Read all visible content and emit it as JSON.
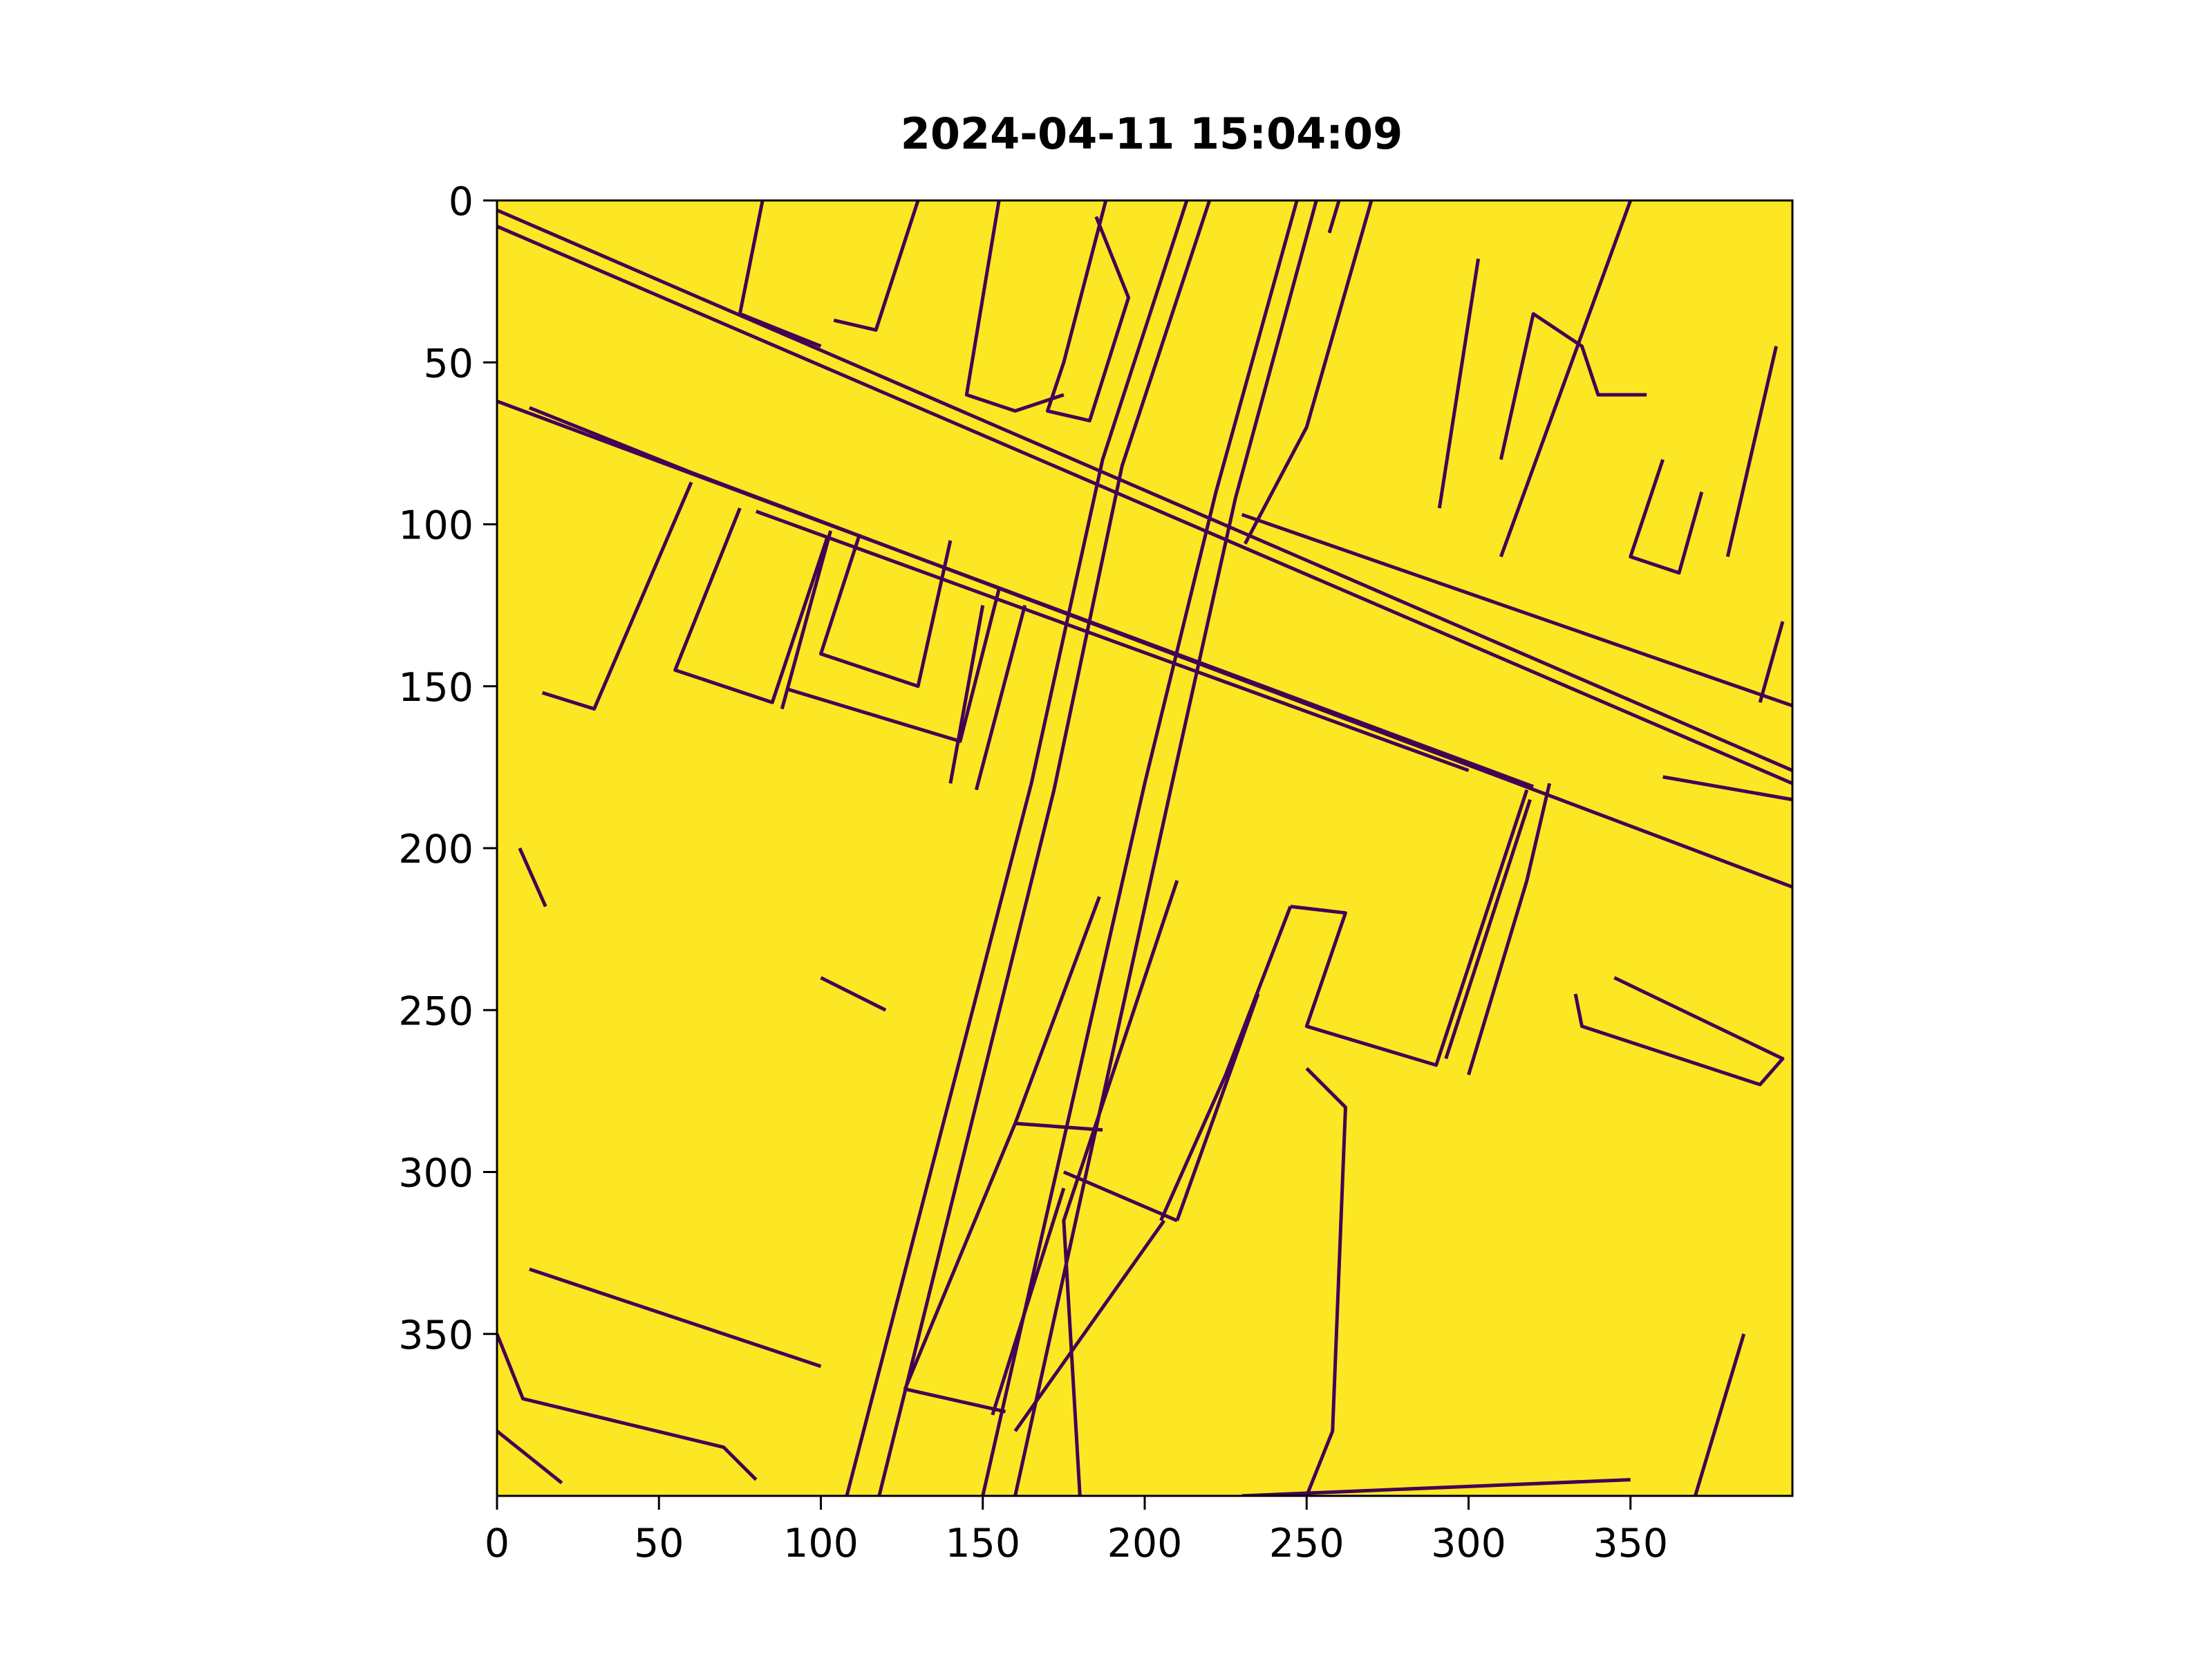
{
  "chart_data": {
    "type": "heatmap",
    "title": "2024-04-11 15:04:09",
    "xlabel": "",
    "ylabel": "",
    "xlim": [
      0,
      400
    ],
    "ylim": [
      400,
      0
    ],
    "x_ticks": [
      "0",
      "50",
      "100",
      "150",
      "200",
      "250",
      "300",
      "350"
    ],
    "y_ticks": [
      "0",
      "50",
      "100",
      "150",
      "200",
      "250",
      "300",
      "350"
    ],
    "x_tick_values": [
      0,
      50,
      100,
      150,
      200,
      250,
      300,
      350
    ],
    "y_tick_values": [
      0,
      50,
      100,
      150,
      200,
      250,
      300,
      350
    ],
    "colormap": "viridis",
    "colors": {
      "high": "#fde725",
      "low": "#440154"
    },
    "grid": false,
    "legend": "none",
    "description_values": "binary edge mask image (400x400), mostly high (1) with thin low (0) edge lines of roads and buildings",
    "low_value_strokes": [
      [
        [
          0,
          3
        ],
        [
          400,
          176
        ]
      ],
      [
        [
          0,
          8
        ],
        [
          400,
          180
        ]
      ],
      [
        [
          0,
          62
        ],
        [
          320,
          181
        ]
      ],
      [
        [
          10,
          64
        ],
        [
          60,
          84
        ]
      ],
      [
        [
          60,
          84
        ],
        [
          400,
          212
        ]
      ],
      [
        [
          80,
          96
        ],
        [
          300,
          176
        ]
      ],
      [
        [
          230,
          97
        ],
        [
          400,
          156
        ]
      ],
      [
        [
          350,
          0
        ],
        [
          310,
          110
        ]
      ],
      [
        [
          213,
          0
        ],
        [
          187,
          80
        ],
        [
          165,
          180
        ],
        [
          108,
          400
        ]
      ],
      [
        [
          220,
          0
        ],
        [
          193,
          82
        ],
        [
          172,
          182
        ],
        [
          118,
          400
        ]
      ],
      [
        [
          247,
          0
        ],
        [
          222,
          90
        ],
        [
          200,
          180
        ],
        [
          150,
          400
        ]
      ],
      [
        [
          253,
          0
        ],
        [
          228,
          92
        ],
        [
          208,
          182
        ],
        [
          160,
          400
        ]
      ],
      [
        [
          270,
          0
        ],
        [
          250,
          70
        ],
        [
          231,
          106
        ]
      ],
      [
        [
          303,
          18
        ],
        [
          291,
          95
        ]
      ],
      [
        [
          60,
          87
        ],
        [
          30,
          157
        ],
        [
          14,
          152
        ]
      ],
      [
        [
          102,
          104
        ],
        [
          85,
          155
        ],
        [
          55,
          145
        ],
        [
          75,
          95
        ]
      ],
      [
        [
          103,
          102
        ],
        [
          88,
          157
        ]
      ],
      [
        [
          140,
          105
        ],
        [
          130,
          150
        ],
        [
          100,
          140
        ],
        [
          112,
          103
        ]
      ],
      [
        [
          155,
          120
        ],
        [
          143,
          167
        ],
        [
          90,
          151
        ]
      ],
      [
        [
          163,
          125
        ],
        [
          148,
          182
        ]
      ],
      [
        [
          318,
          182
        ],
        [
          290,
          267
        ],
        [
          250,
          255
        ],
        [
          262,
          220
        ],
        [
          245,
          218
        ]
      ],
      [
        [
          319,
          185
        ],
        [
          293,
          265
        ]
      ],
      [
        [
          245,
          218
        ],
        [
          225,
          270
        ],
        [
          205,
          315
        ]
      ],
      [
        [
          235,
          245
        ],
        [
          210,
          315
        ]
      ],
      [
        [
          210,
          315
        ],
        [
          175,
          300
        ]
      ],
      [
        [
          175,
          305
        ],
        [
          153,
          375
        ]
      ],
      [
        [
          206,
          315
        ],
        [
          160,
          380
        ]
      ],
      [
        [
          157,
          374
        ],
        [
          126,
          367
        ],
        [
          160,
          285
        ],
        [
          187,
          287
        ]
      ],
      [
        [
          186,
          215
        ],
        [
          160,
          285
        ]
      ],
      [
        [
          210,
          210
        ],
        [
          175,
          315
        ],
        [
          180,
          400
        ]
      ],
      [
        [
          250,
          268
        ],
        [
          262,
          280
        ],
        [
          258,
          380
        ],
        [
          250,
          400
        ]
      ],
      [
        [
          333,
          245
        ],
        [
          335,
          255
        ],
        [
          390,
          273
        ],
        [
          397,
          265
        ],
        [
          345,
          240
        ]
      ],
      [
        [
          360,
          178
        ],
        [
          400,
          185
        ]
      ],
      [
        [
          260,
          0
        ],
        [
          257,
          10
        ]
      ],
      [
        [
          325,
          180
        ],
        [
          318,
          210
        ],
        [
          300,
          270
        ]
      ],
      [
        [
          7,
          200
        ],
        [
          15,
          218
        ]
      ],
      [
        [
          0,
          350
        ],
        [
          8,
          370
        ],
        [
          70,
          385
        ],
        [
          80,
          395
        ]
      ],
      [
        [
          10,
          330
        ],
        [
          100,
          360
        ]
      ],
      [
        [
          100,
          240
        ],
        [
          120,
          250
        ]
      ],
      [
        [
          150,
          125
        ],
        [
          140,
          180
        ]
      ],
      [
        [
          0,
          380
        ],
        [
          20,
          396
        ]
      ],
      [
        [
          385,
          350
        ],
        [
          370,
          400
        ]
      ],
      [
        [
          230,
          400
        ],
        [
          350,
          395
        ]
      ],
      [
        [
          360,
          80
        ],
        [
          350,
          110
        ],
        [
          365,
          115
        ],
        [
          372,
          90
        ]
      ],
      [
        [
          310,
          80
        ],
        [
          320,
          35
        ],
        [
          335,
          45
        ],
        [
          340,
          60
        ],
        [
          355,
          60
        ]
      ],
      [
        [
          395,
          45
        ],
        [
          380,
          110
        ]
      ],
      [
        [
          397,
          130
        ],
        [
          390,
          155
        ]
      ],
      [
        [
          130,
          0
        ],
        [
          117,
          40
        ],
        [
          104,
          37
        ]
      ],
      [
        [
          155,
          0
        ],
        [
          150,
          30
        ],
        [
          145,
          60
        ],
        [
          160,
          65
        ],
        [
          175,
          60
        ]
      ],
      [
        [
          188,
          0
        ],
        [
          175,
          50
        ],
        [
          170,
          65
        ],
        [
          183,
          68
        ],
        [
          195,
          30
        ],
        [
          185,
          5
        ]
      ],
      [
        [
          82,
          0
        ],
        [
          75,
          35
        ],
        [
          100,
          45
        ]
      ]
    ]
  }
}
